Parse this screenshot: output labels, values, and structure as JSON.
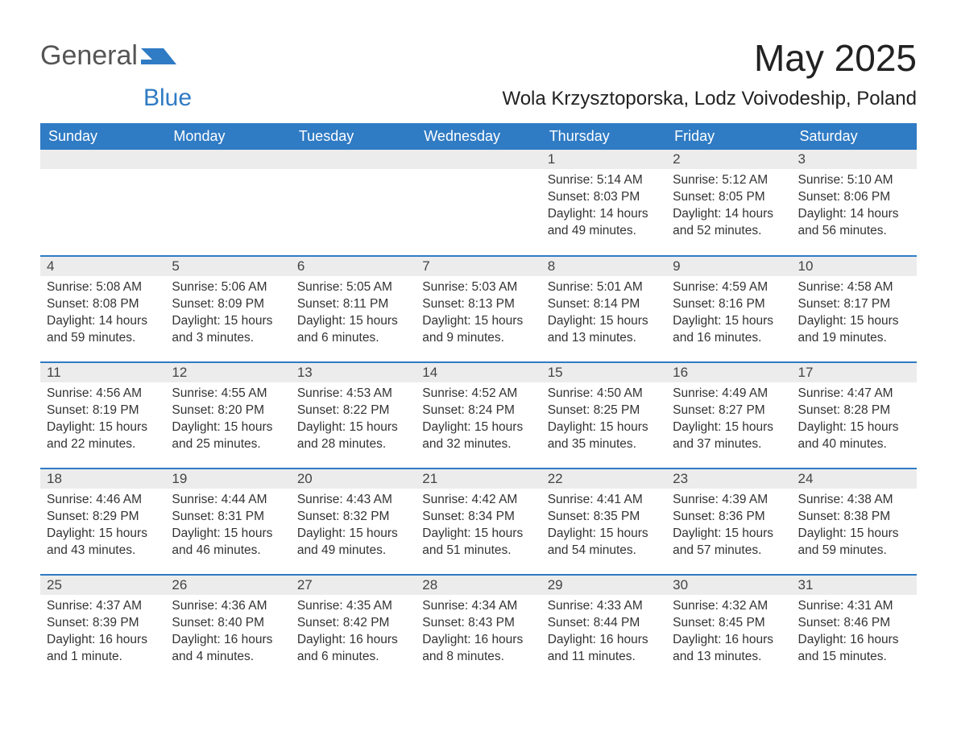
{
  "logo": {
    "text1": "General",
    "text2": "Blue",
    "shape_color": "#2f7bc4",
    "text1_color": "#555555",
    "text2_color": "#2f7bc4"
  },
  "title": "May 2025",
  "location": "Wola Krzysztoporska, Lodz Voivodeship, Poland",
  "colors": {
    "header_bg": "#2f7bc4",
    "header_text": "#ffffff",
    "daynum_bg": "#ececec",
    "daynum_text": "#444444",
    "body_text": "#333333",
    "row_border": "#2f7bc4",
    "page_bg": "#ffffff"
  },
  "fonts": {
    "title_size_pt": 34,
    "location_size_pt": 18,
    "header_size_pt": 14,
    "body_size_pt": 12
  },
  "weekdays": [
    "Sunday",
    "Monday",
    "Tuesday",
    "Wednesday",
    "Thursday",
    "Friday",
    "Saturday"
  ],
  "layout": {
    "columns": 7,
    "rows": 5,
    "first_day_column_index": 4
  },
  "days": [
    {
      "n": 1,
      "sunrise": "5:14 AM",
      "sunset": "8:03 PM",
      "daylight": "14 hours and 49 minutes."
    },
    {
      "n": 2,
      "sunrise": "5:12 AM",
      "sunset": "8:05 PM",
      "daylight": "14 hours and 52 minutes."
    },
    {
      "n": 3,
      "sunrise": "5:10 AM",
      "sunset": "8:06 PM",
      "daylight": "14 hours and 56 minutes."
    },
    {
      "n": 4,
      "sunrise": "5:08 AM",
      "sunset": "8:08 PM",
      "daylight": "14 hours and 59 minutes."
    },
    {
      "n": 5,
      "sunrise": "5:06 AM",
      "sunset": "8:09 PM",
      "daylight": "15 hours and 3 minutes."
    },
    {
      "n": 6,
      "sunrise": "5:05 AM",
      "sunset": "8:11 PM",
      "daylight": "15 hours and 6 minutes."
    },
    {
      "n": 7,
      "sunrise": "5:03 AM",
      "sunset": "8:13 PM",
      "daylight": "15 hours and 9 minutes."
    },
    {
      "n": 8,
      "sunrise": "5:01 AM",
      "sunset": "8:14 PM",
      "daylight": "15 hours and 13 minutes."
    },
    {
      "n": 9,
      "sunrise": "4:59 AM",
      "sunset": "8:16 PM",
      "daylight": "15 hours and 16 minutes."
    },
    {
      "n": 10,
      "sunrise": "4:58 AM",
      "sunset": "8:17 PM",
      "daylight": "15 hours and 19 minutes."
    },
    {
      "n": 11,
      "sunrise": "4:56 AM",
      "sunset": "8:19 PM",
      "daylight": "15 hours and 22 minutes."
    },
    {
      "n": 12,
      "sunrise": "4:55 AM",
      "sunset": "8:20 PM",
      "daylight": "15 hours and 25 minutes."
    },
    {
      "n": 13,
      "sunrise": "4:53 AM",
      "sunset": "8:22 PM",
      "daylight": "15 hours and 28 minutes."
    },
    {
      "n": 14,
      "sunrise": "4:52 AM",
      "sunset": "8:24 PM",
      "daylight": "15 hours and 32 minutes."
    },
    {
      "n": 15,
      "sunrise": "4:50 AM",
      "sunset": "8:25 PM",
      "daylight": "15 hours and 35 minutes."
    },
    {
      "n": 16,
      "sunrise": "4:49 AM",
      "sunset": "8:27 PM",
      "daylight": "15 hours and 37 minutes."
    },
    {
      "n": 17,
      "sunrise": "4:47 AM",
      "sunset": "8:28 PM",
      "daylight": "15 hours and 40 minutes."
    },
    {
      "n": 18,
      "sunrise": "4:46 AM",
      "sunset": "8:29 PM",
      "daylight": "15 hours and 43 minutes."
    },
    {
      "n": 19,
      "sunrise": "4:44 AM",
      "sunset": "8:31 PM",
      "daylight": "15 hours and 46 minutes."
    },
    {
      "n": 20,
      "sunrise": "4:43 AM",
      "sunset": "8:32 PM",
      "daylight": "15 hours and 49 minutes."
    },
    {
      "n": 21,
      "sunrise": "4:42 AM",
      "sunset": "8:34 PM",
      "daylight": "15 hours and 51 minutes."
    },
    {
      "n": 22,
      "sunrise": "4:41 AM",
      "sunset": "8:35 PM",
      "daylight": "15 hours and 54 minutes."
    },
    {
      "n": 23,
      "sunrise": "4:39 AM",
      "sunset": "8:36 PM",
      "daylight": "15 hours and 57 minutes."
    },
    {
      "n": 24,
      "sunrise": "4:38 AM",
      "sunset": "8:38 PM",
      "daylight": "15 hours and 59 minutes."
    },
    {
      "n": 25,
      "sunrise": "4:37 AM",
      "sunset": "8:39 PM",
      "daylight": "16 hours and 1 minute."
    },
    {
      "n": 26,
      "sunrise": "4:36 AM",
      "sunset": "8:40 PM",
      "daylight": "16 hours and 4 minutes."
    },
    {
      "n": 27,
      "sunrise": "4:35 AM",
      "sunset": "8:42 PM",
      "daylight": "16 hours and 6 minutes."
    },
    {
      "n": 28,
      "sunrise": "4:34 AM",
      "sunset": "8:43 PM",
      "daylight": "16 hours and 8 minutes."
    },
    {
      "n": 29,
      "sunrise": "4:33 AM",
      "sunset": "8:44 PM",
      "daylight": "16 hours and 11 minutes."
    },
    {
      "n": 30,
      "sunrise": "4:32 AM",
      "sunset": "8:45 PM",
      "daylight": "16 hours and 13 minutes."
    },
    {
      "n": 31,
      "sunrise": "4:31 AM",
      "sunset": "8:46 PM",
      "daylight": "16 hours and 15 minutes."
    }
  ],
  "labels": {
    "sunrise": "Sunrise:",
    "sunset": "Sunset:",
    "daylight": "Daylight:"
  }
}
